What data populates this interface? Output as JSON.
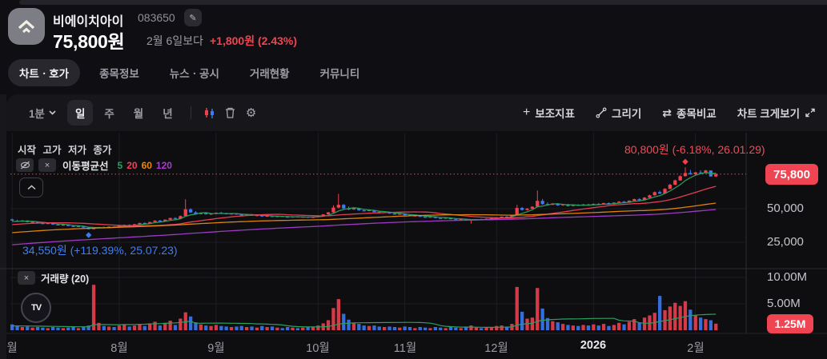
{
  "header": {
    "name": "비에이치아이",
    "code": "083650",
    "price": "75,800원",
    "compare_label": "2월 6일보다",
    "change": "+1,800원 (2.43%)"
  },
  "tabs": [
    {
      "label": "차트ㆍ호가",
      "active": true
    },
    {
      "label": "종목정보",
      "active": false
    },
    {
      "label": "뉴스ㆍ공시",
      "active": false
    },
    {
      "label": "거래현황",
      "active": false
    },
    {
      "label": "커뮤니티",
      "active": false
    }
  ],
  "toolbar": {
    "timeframe": "1분",
    "periods": [
      "일",
      "주",
      "월",
      "년"
    ],
    "active_period": "일",
    "right_items": [
      {
        "label": "보조지표"
      },
      {
        "label": "그리기"
      },
      {
        "label": "종목비교"
      },
      {
        "label": "차트 크게보기"
      }
    ]
  },
  "icons": {
    "plus_glyph": "+",
    "compare_glyph": "⇄",
    "gear_glyph": "⚙",
    "close_glyph": "×",
    "pencil_glyph": "✎",
    "tv_glyph": "TV"
  },
  "chart": {
    "ohlc_header": "시작 고가 저가 종가",
    "ma_label": "이동평균선",
    "volume_label": "거래량 (20)"
  },
  "chart_data": {
    "type": "candlestick",
    "title": "비에이치아이 일봉 차트",
    "current_price": 75800,
    "current_price_label": "75,800",
    "current_volume": 1.25,
    "current_volume_label": "1.25M",
    "high_point": {
      "price": 80800,
      "index": 132,
      "label": "80,800원 (-6.18%, 26.01.29)"
    },
    "low_point": {
      "price": 34550,
      "index": 15,
      "label": "34,550원 (+119.39%, 25.07.23)"
    },
    "price_ticks": [
      {
        "label": "50,000",
        "value": 50000
      },
      {
        "label": "25,000",
        "value": 25000
      }
    ],
    "volume_ticks": [
      {
        "label": "10.00M",
        "value": 10
      },
      {
        "label": "5.00M",
        "value": 5
      }
    ],
    "x_ticks": [
      {
        "label": "월",
        "i": 0
      },
      {
        "label": "8월",
        "i": 21
      },
      {
        "label": "9월",
        "i": 40
      },
      {
        "label": "10월",
        "i": 60
      },
      {
        "label": "11월",
        "i": 77
      },
      {
        "label": "12월",
        "i": 95
      },
      {
        "label": "2026",
        "i": 114,
        "bold": true
      },
      {
        "label": "2월",
        "i": 134
      }
    ],
    "mas": [
      {
        "window": 5,
        "label": "5",
        "color": "#2aa05f"
      },
      {
        "window": 20,
        "label": "20",
        "color": "#ee4058"
      },
      {
        "window": 60,
        "label": "60",
        "color": "#e8890f"
      },
      {
        "window": 120,
        "label": "120",
        "color": "#a73ccd"
      }
    ],
    "up_color": "#f2404f",
    "down_color": "#3b7cf6",
    "ylim_price": [
      20000,
      106000
    ],
    "ylim_volume": [
      0,
      12
    ],
    "candles": [
      [
        42000,
        42600,
        40800,
        41100,
        1.1
      ],
      [
        41100,
        41700,
        40300,
        40500,
        0.8
      ],
      [
        40500,
        41500,
        40200,
        41200,
        0.6
      ],
      [
        41200,
        41400,
        39800,
        40000,
        0.7
      ],
      [
        40000,
        40700,
        39400,
        40300,
        0.5
      ],
      [
        40300,
        40500,
        39000,
        39200,
        0.6
      ],
      [
        39200,
        39900,
        38600,
        38800,
        0.5
      ],
      [
        38800,
        39600,
        38500,
        39300,
        0.4
      ],
      [
        39300,
        39500,
        38000,
        38200,
        0.6
      ],
      [
        38200,
        38900,
        37600,
        37800,
        0.5
      ],
      [
        37800,
        38400,
        37300,
        38100,
        0.4
      ],
      [
        38100,
        38300,
        36900,
        37100,
        0.5
      ],
      [
        37100,
        37700,
        36400,
        36600,
        0.6
      ],
      [
        36600,
        37300,
        36200,
        37000,
        0.4
      ],
      [
        37000,
        37100,
        35700,
        35900,
        0.7
      ],
      [
        35900,
        36100,
        34550,
        34750,
        0.9
      ],
      [
        34750,
        35950,
        34650,
        35750,
        8.6
      ],
      [
        35750,
        36450,
        35450,
        36250,
        1.4
      ],
      [
        36250,
        36650,
        35750,
        35950,
        0.8
      ],
      [
        35950,
        36850,
        35850,
        36650,
        0.7
      ],
      [
        36650,
        37050,
        36150,
        36350,
        0.6
      ],
      [
        36350,
        37450,
        36250,
        37250,
        0.9
      ],
      [
        37250,
        38150,
        36950,
        37950,
        1.1
      ],
      [
        37950,
        38350,
        37350,
        37550,
        0.7
      ],
      [
        37550,
        38650,
        37450,
        38450,
        0.9
      ],
      [
        38450,
        39550,
        38250,
        39350,
        1.2
      ],
      [
        39350,
        39850,
        38750,
        38950,
        0.8
      ],
      [
        38950,
        40250,
        38850,
        40050,
        1.3
      ],
      [
        40050,
        41350,
        39950,
        41150,
        1.6
      ],
      [
        41150,
        41650,
        40350,
        40550,
        0.9
      ],
      [
        40550,
        42050,
        40450,
        41850,
        1.4
      ],
      [
        41850,
        43250,
        41650,
        43050,
        1.8
      ],
      [
        43050,
        43650,
        42250,
        42450,
        1.0
      ],
      [
        42450,
        44850,
        42350,
        44550,
        2.2
      ],
      [
        44550,
        57000,
        44250,
        49550,
        3.4
      ],
      [
        49550,
        50250,
        46850,
        47250,
        2.6
      ],
      [
        47250,
        48150,
        45650,
        45950,
        1.5
      ],
      [
        45950,
        47350,
        45750,
        46850,
        1.1
      ],
      [
        46850,
        47050,
        45550,
        45850,
        0.9
      ],
      [
        45850,
        46650,
        45350,
        46350,
        0.8
      ],
      [
        46350,
        47250,
        45950,
        46950,
        1.0
      ],
      [
        46950,
        47650,
        46350,
        46550,
        0.8
      ],
      [
        46550,
        46950,
        45750,
        45950,
        0.7
      ],
      [
        45950,
        46650,
        45550,
        46450,
        0.6
      ],
      [
        46450,
        46750,
        45450,
        45650,
        0.7
      ],
      [
        45650,
        46250,
        44950,
        45150,
        0.8
      ],
      [
        45150,
        45950,
        44850,
        45750,
        0.6
      ],
      [
        45750,
        45950,
        44650,
        44850,
        0.7
      ],
      [
        44850,
        45550,
        44350,
        45250,
        0.5
      ],
      [
        45250,
        45450,
        43950,
        44150,
        0.8
      ],
      [
        44150,
        44950,
        43850,
        44750,
        0.6
      ],
      [
        44750,
        44950,
        43650,
        43850,
        0.7
      ],
      [
        43850,
        44650,
        43550,
        44450,
        0.5
      ],
      [
        44450,
        44850,
        43750,
        44050,
        0.4
      ],
      [
        44050,
        44550,
        43350,
        43550,
        0.6
      ],
      [
        43550,
        44350,
        43250,
        44150,
        0.5
      ],
      [
        44150,
        44450,
        43450,
        43650,
        0.4
      ],
      [
        43650,
        44250,
        43350,
        44050,
        0.5
      ],
      [
        44050,
        44250,
        43150,
        43350,
        0.6
      ],
      [
        43350,
        44150,
        43050,
        43950,
        0.7
      ],
      [
        43950,
        44850,
        43750,
        44650,
        0.9
      ],
      [
        44650,
        45950,
        44550,
        45750,
        1.3
      ],
      [
        45750,
        47550,
        45550,
        47250,
        1.9
      ],
      [
        47250,
        52550,
        47050,
        50850,
        4.2
      ],
      [
        50850,
        61000,
        50250,
        52850,
        5.9
      ],
      [
        52850,
        53450,
        49850,
        50250,
        3.1
      ],
      [
        50250,
        51650,
        48950,
        49350,
        2.0
      ],
      [
        49350,
        50850,
        49150,
        50350,
        1.4
      ],
      [
        50350,
        50650,
        48450,
        48750,
        1.2
      ],
      [
        48750,
        49650,
        47950,
        48250,
        0.9
      ],
      [
        48250,
        49350,
        48050,
        48950,
        0.8
      ],
      [
        48950,
        49150,
        47350,
        47550,
        0.9
      ],
      [
        47550,
        48250,
        46750,
        46950,
        0.7
      ],
      [
        46950,
        47850,
        46650,
        47450,
        0.6
      ],
      [
        47450,
        47650,
        46150,
        46350,
        0.7
      ],
      [
        46350,
        46950,
        45650,
        45850,
        0.6
      ],
      [
        45850,
        46550,
        45450,
        46250,
        0.5
      ],
      [
        46250,
        46450,
        44950,
        45150,
        0.7
      ],
      [
        45150,
        45650,
        44350,
        44550,
        0.6
      ],
      [
        44550,
        45250,
        44150,
        44950,
        0.4
      ],
      [
        44950,
        45050,
        43750,
        43950,
        0.6
      ],
      [
        43950,
        44550,
        43450,
        43650,
        0.5
      ],
      [
        43650,
        44250,
        43350,
        44050,
        0.4
      ],
      [
        44050,
        44150,
        42850,
        43050,
        0.6
      ],
      [
        43050,
        43750,
        42550,
        42750,
        0.5
      ],
      [
        42750,
        43450,
        42450,
        43250,
        0.4
      ],
      [
        43250,
        43350,
        41950,
        42150,
        0.6
      ],
      [
        42150,
        42850,
        41650,
        41850,
        0.5
      ],
      [
        41850,
        42550,
        41550,
        42350,
        0.4
      ],
      [
        42350,
        42450,
        40950,
        41250,
        0.7
      ],
      [
        41250,
        42150,
        38950,
        41850,
        0.9
      ],
      [
        41850,
        42350,
        41350,
        42150,
        0.5
      ],
      [
        42150,
        42650,
        41750,
        41950,
        0.4
      ],
      [
        41950,
        42750,
        41850,
        42550,
        0.5
      ],
      [
        42550,
        43150,
        42250,
        42950,
        0.6
      ],
      [
        42950,
        43650,
        42650,
        43450,
        0.8
      ],
      [
        43450,
        44250,
        43250,
        44050,
        0.9
      ],
      [
        44050,
        44450,
        43550,
        43750,
        0.7
      ],
      [
        43750,
        45150,
        43650,
        44950,
        1.2
      ],
      [
        44950,
        52850,
        44850,
        50550,
        8.2
      ],
      [
        50550,
        51250,
        48650,
        49050,
        3.5
      ],
      [
        49050,
        50450,
        48550,
        50050,
        2.2
      ],
      [
        50050,
        51850,
        49750,
        51450,
        2.4
      ],
      [
        51450,
        63500,
        51250,
        55850,
        8.0
      ],
      [
        55850,
        57250,
        52950,
        53450,
        4.1
      ],
      [
        53450,
        54650,
        52450,
        52850,
        2.3
      ],
      [
        52850,
        54250,
        52650,
        53850,
        1.7
      ],
      [
        53850,
        54150,
        52150,
        52450,
        1.5
      ],
      [
        52450,
        53650,
        52050,
        53250,
        1.2
      ],
      [
        53250,
        53550,
        51650,
        51950,
        1.0
      ],
      [
        51950,
        53150,
        51750,
        52850,
        0.9
      ],
      [
        52850,
        53350,
        51950,
        52250,
        0.8
      ],
      [
        52250,
        53450,
        52150,
        53150,
        1.0
      ],
      [
        53150,
        53650,
        52350,
        52650,
        0.9
      ],
      [
        52650,
        53850,
        52450,
        53550,
        1.1
      ],
      [
        53550,
        54250,
        52850,
        53050,
        0.9
      ],
      [
        53050,
        54450,
        52950,
        54150,
        1.2
      ],
      [
        54150,
        54650,
        53250,
        53550,
        0.8
      ],
      [
        53550,
        54850,
        53450,
        54550,
        1.0
      ],
      [
        54550,
        55650,
        54250,
        55250,
        1.4
      ],
      [
        55250,
        55850,
        54150,
        54450,
        1.1
      ],
      [
        54450,
        56250,
        54350,
        55950,
        1.6
      ],
      [
        55950,
        57450,
        55750,
        57150,
        2.1
      ],
      [
        57150,
        57850,
        55950,
        56350,
        1.5
      ],
      [
        56350,
        58650,
        56250,
        58250,
        2.4
      ],
      [
        58250,
        60450,
        58050,
        59950,
        2.8
      ],
      [
        59950,
        62850,
        59750,
        62350,
        3.3
      ],
      [
        62350,
        63450,
        60850,
        61250,
        6.5
      ],
      [
        61250,
        65250,
        61050,
        64750,
        3.8
      ],
      [
        64750,
        68450,
        64550,
        67850,
        4.5
      ],
      [
        67850,
        71650,
        67550,
        71050,
        5.2
      ],
      [
        71050,
        74850,
        70650,
        74250,
        4.6
      ],
      [
        74250,
        80800,
        73850,
        76550,
        5.5
      ],
      [
        76550,
        78950,
        75250,
        75650,
        3.9
      ],
      [
        75650,
        77450,
        74650,
        77050,
        2.8
      ],
      [
        77050,
        78650,
        76250,
        76650,
        2.4
      ],
      [
        76650,
        78850,
        76350,
        78450,
        2.1
      ],
      [
        78450,
        78550,
        73900,
        74000,
        1.9
      ],
      [
        74000,
        76350,
        73650,
        75800,
        1.25
      ]
    ]
  }
}
